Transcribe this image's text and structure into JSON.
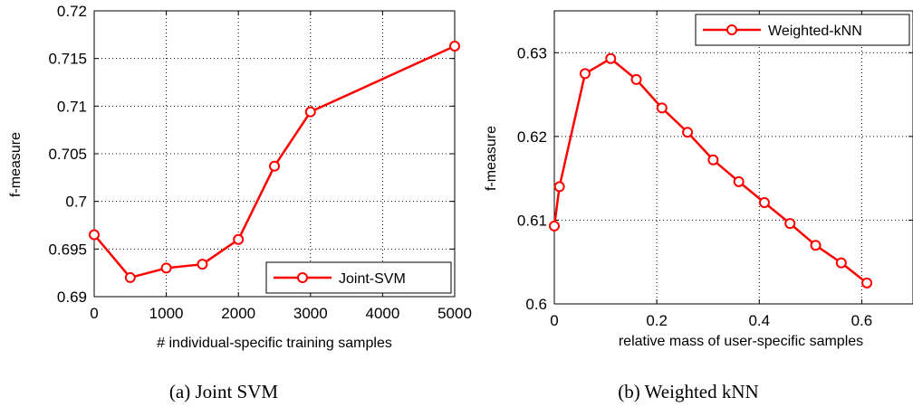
{
  "chart_data": [
    {
      "type": "line",
      "caption": "(a) Joint SVM",
      "xlabel": "# individual-specific training samples",
      "ylabel": "f-measure",
      "xlim": [
        0,
        5000
      ],
      "ylim": [
        0.69,
        0.72
      ],
      "xticks": [
        0,
        1000,
        2000,
        3000,
        4000,
        5000
      ],
      "xtick_labels": [
        "0",
        "1000",
        "2000",
        "3000",
        "4000",
        "5000"
      ],
      "yticks": [
        0.69,
        0.695,
        0.7,
        0.705,
        0.71,
        0.715,
        0.72
      ],
      "ytick_labels": [
        "0.69",
        "0.695",
        "0.7",
        "0.705",
        "0.71",
        "0.715",
        "0.72"
      ],
      "grid": true,
      "legend_position": "bottom-right",
      "color": "#ff0000",
      "series": [
        {
          "name": "Joint-SVM",
          "x": [
            0,
            500,
            1000,
            1500,
            2000,
            2500,
            3000,
            5000
          ],
          "values": [
            0.6965,
            0.692,
            0.693,
            0.6934,
            0.696,
            0.7037,
            0.7094,
            0.7163
          ]
        }
      ]
    },
    {
      "type": "line",
      "caption": "(b) Weighted kNN",
      "xlabel": "relative mass of user-specific samples",
      "ylabel": "f-measure",
      "xlim": [
        0,
        0.7
      ],
      "ylim": [
        0.6,
        0.635
      ],
      "xticks": [
        0,
        0.2,
        0.4,
        0.6
      ],
      "xtick_labels": [
        "0",
        "0.2",
        "0.4",
        "0.6"
      ],
      "yticks": [
        0.6,
        0.61,
        0.62,
        0.63
      ],
      "ytick_labels": [
        "0.6",
        "0.61",
        "0.62",
        "0.63"
      ],
      "grid": true,
      "legend_position": "top-right",
      "color": "#ff0000",
      "series": [
        {
          "name": "Weighted-kNN",
          "x": [
            0,
            0.01,
            0.06,
            0.11,
            0.16,
            0.21,
            0.26,
            0.31,
            0.36,
            0.41,
            0.46,
            0.51,
            0.56,
            0.61
          ],
          "values": [
            0.6093,
            0.614,
            0.6275,
            0.6293,
            0.6268,
            0.6234,
            0.6205,
            0.6172,
            0.6146,
            0.6121,
            0.6096,
            0.607,
            0.6049,
            0.6025
          ]
        }
      ]
    }
  ]
}
